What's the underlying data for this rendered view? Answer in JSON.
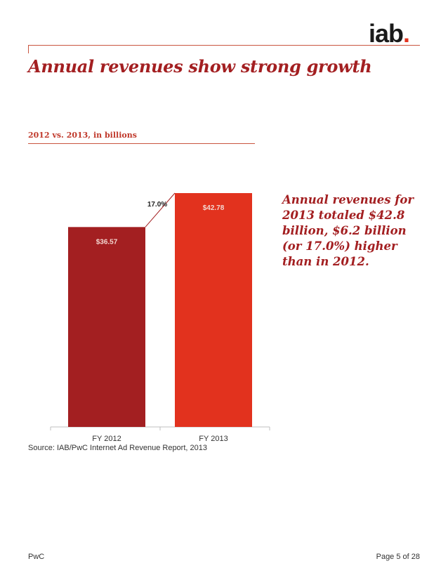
{
  "header": {
    "logo": {
      "text": "iab",
      "dot": "."
    },
    "title": "Annual revenues show strong growth",
    "subtitle": "2012 vs. 2013, in billions"
  },
  "chart_data": {
    "type": "bar",
    "categories": [
      "FY 2012",
      "FY 2013"
    ],
    "values": [
      36.57,
      42.78
    ],
    "data_labels": [
      "$36.57",
      "$42.78"
    ],
    "colors": [
      "#a31f21",
      "#e2321e"
    ],
    "growth_label": "17.0%",
    "ylim": [
      0,
      42.78
    ],
    "title": "",
    "xlabel": "",
    "ylabel": ""
  },
  "source": "Source: IAB/PwC Internet Ad Revenue Report, 2013",
  "callout": "Annual revenues for 2013 totaled $42.8 billion, $6.2 billion (or 17.0%) higher than in 2012.",
  "footer": {
    "left": "PwC",
    "right": "Page 5 of 28"
  }
}
